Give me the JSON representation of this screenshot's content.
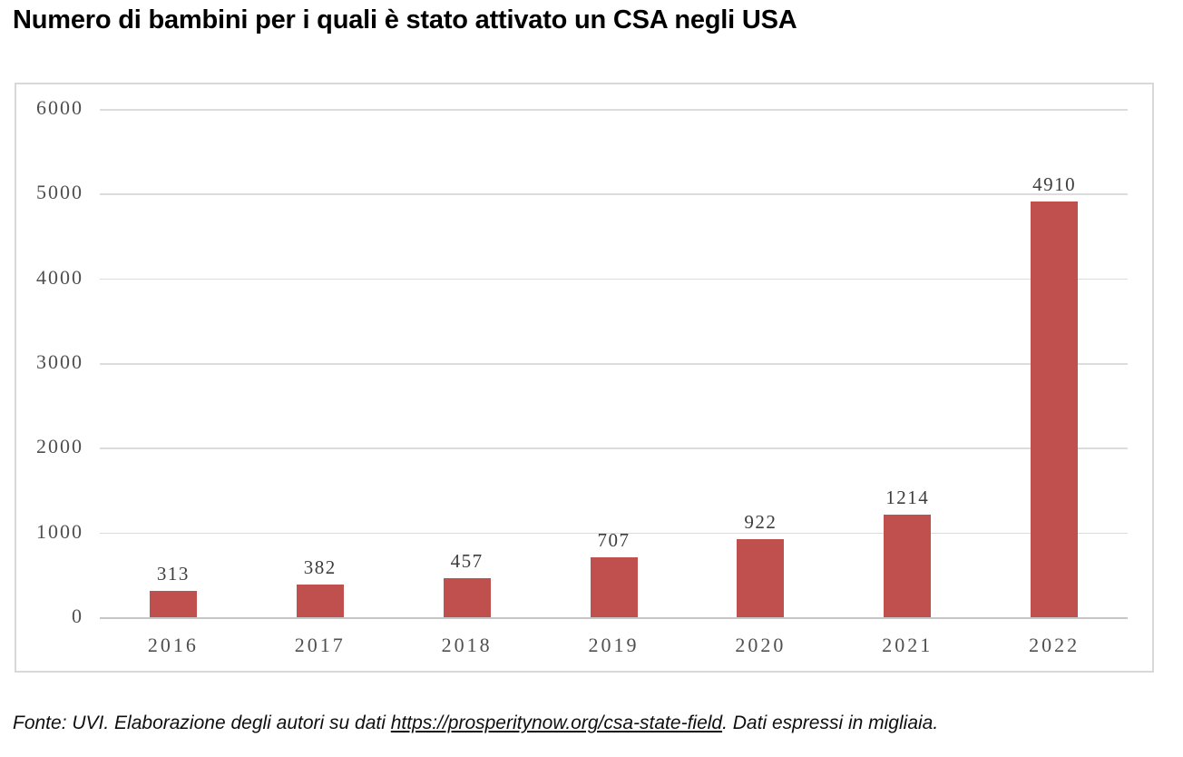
{
  "title": "Numero di bambini per i quali è stato attivato un CSA negli USA",
  "chart_data": {
    "type": "bar",
    "title": "Numero di bambini per i quali è stato attivato un CSA negli USA",
    "categories": [
      "2016",
      "2017",
      "2018",
      "2019",
      "2020",
      "2021",
      "2022"
    ],
    "values": [
      313,
      382,
      457,
      707,
      922,
      1214,
      4910
    ],
    "xlabel": "",
    "ylabel": "",
    "ylim": [
      0,
      6000
    ],
    "yticks_desc": [
      "6000",
      "5000",
      "4000",
      "3000",
      "2000",
      "1000",
      "0"
    ],
    "grid": true,
    "legend": false,
    "bar_color": "#c0504d",
    "gridline_color": "#dcdcdc",
    "axis_line_color": "#c6c6c6",
    "tick_label_color": "#4f4f4f",
    "data_label_color": "#3d3d3d"
  },
  "footer": {
    "prefix": "Fonte: UVI. Elaborazione degli autori su dati ",
    "link": "https://prosperitynow.org/csa-state-field",
    "suffix": ". Dati espressi in migliaia."
  }
}
